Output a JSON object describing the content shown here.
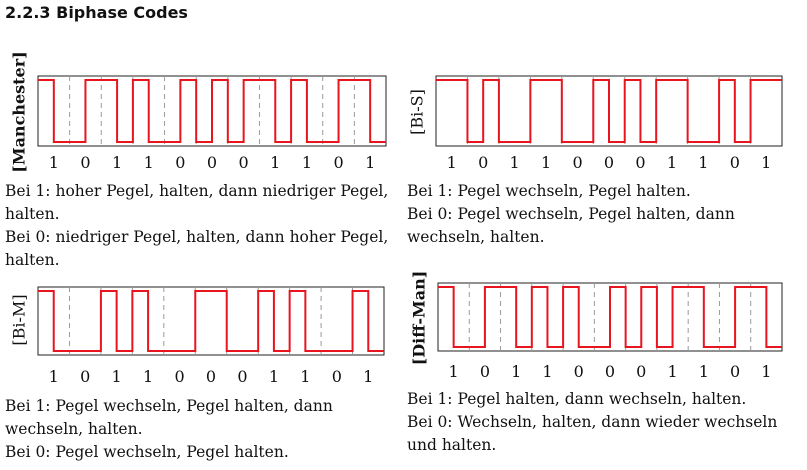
{
  "heading": "2.2.3  Biphase Codes",
  "panels": [
    {
      "label": "[Manchester]",
      "bold_label": true,
      "bits": [
        "1",
        "0",
        "1",
        "1",
        "0",
        "0",
        "0",
        "1",
        "1",
        "0",
        "1"
      ],
      "levels": [
        1,
        0,
        0,
        1,
        1,
        0,
        1,
        0,
        0,
        1,
        0,
        1,
        0,
        1,
        1,
        0,
        1,
        0,
        0,
        1,
        1,
        0
      ],
      "desc": [
        "Bei 1: hoher Pegel, halten, dann niedriger Pegel, halten.",
        "Bei 0: niedriger Pegel, halten, dann hoher Pegel, halten."
      ]
    },
    {
      "label": "[Bi-S]",
      "bold_label": false,
      "bits": [
        "1",
        "0",
        "1",
        "1",
        "0",
        "0",
        "0",
        "1",
        "1",
        "0",
        "1"
      ],
      "levels": [
        1,
        1,
        0,
        1,
        0,
        0,
        1,
        1,
        0,
        0,
        1,
        0,
        1,
        0,
        1,
        1,
        0,
        0,
        1,
        0,
        1,
        1
      ],
      "desc": [
        "Bei 1: Pegel wechseln, Pegel halten.",
        "Bei 0: Pegel wechseln, Pegel halten, dann wechseln, halten."
      ]
    },
    {
      "label": "[Bi-M]",
      "bold_label": false,
      "bits": [
        "1",
        "0",
        "1",
        "1",
        "0",
        "0",
        "0",
        "1",
        "1",
        "0",
        "1"
      ],
      "levels": [
        1,
        0,
        0,
        0,
        1,
        0,
        1,
        0,
        0,
        0,
        1,
        1,
        0,
        0,
        1,
        0,
        1,
        0,
        0,
        0,
        1,
        0
      ],
      "desc": [
        "Bei 1: Pegel wechseln, Pegel halten, dann wechseln, halten.",
        "Bei 0: Pegel wechseln, Pegel halten."
      ]
    },
    {
      "label": "[Diff-Man]",
      "bold_label": true,
      "bits": [
        "1",
        "0",
        "1",
        "1",
        "0",
        "0",
        "0",
        "1",
        "1",
        "0",
        "1"
      ],
      "levels": [
        1,
        0,
        0,
        1,
        1,
        0,
        1,
        0,
        1,
        0,
        0,
        1,
        0,
        1,
        0,
        1,
        1,
        0,
        0,
        1,
        1,
        0
      ],
      "desc": [
        "Bei 1: Pegel halten, dann wechseln, halten.",
        "Bei 0: Wechseln, halten, dann wieder wechseln und halten."
      ]
    }
  ],
  "colors": {
    "signal": "#e8141e",
    "frame": "#222222",
    "grid": "#9a9a9a"
  }
}
